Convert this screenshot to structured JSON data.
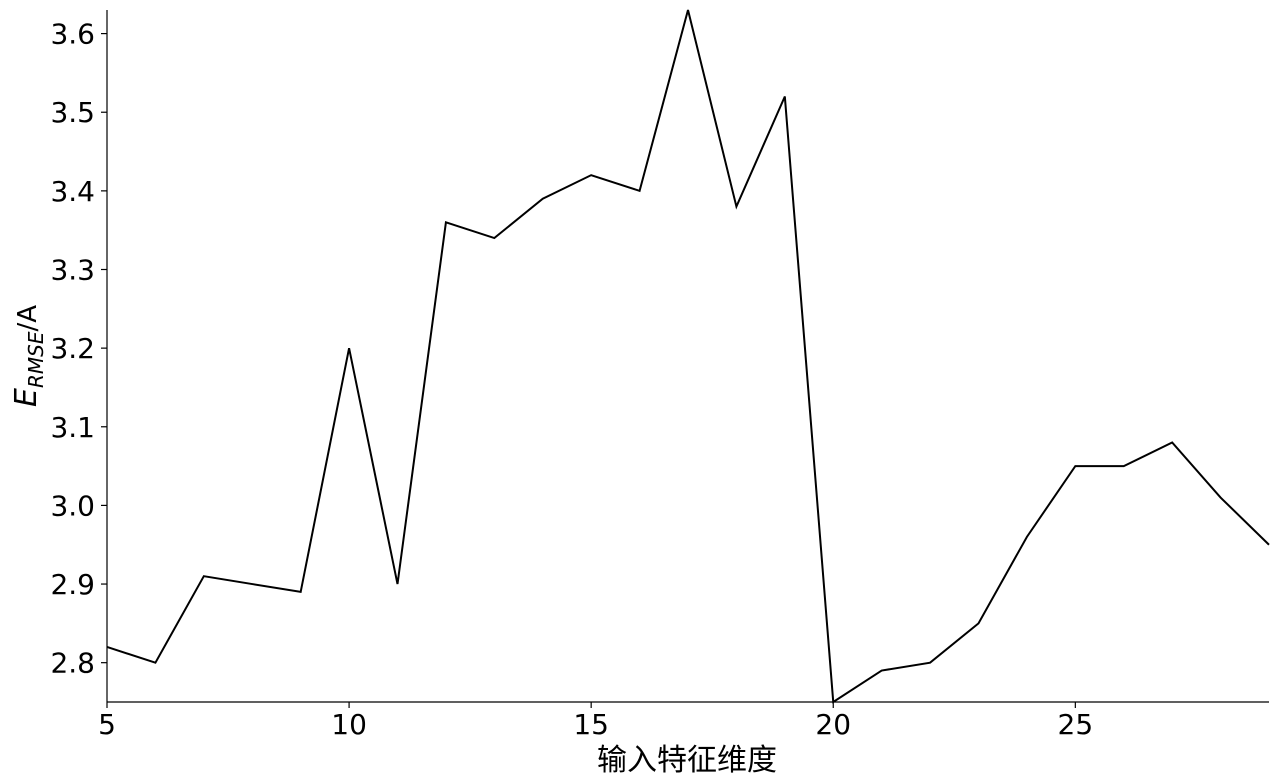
{
  "chart_data": {
    "type": "line",
    "title": "",
    "xlabel": "输入特征维度",
    "ylabel": {
      "main": "E",
      "subscript": "RMSE",
      "suffix": "/A"
    },
    "xlim": [
      5,
      29
    ],
    "ylim": [
      2.75,
      3.63
    ],
    "x_ticks": [
      5,
      10,
      15,
      20,
      25
    ],
    "x_tick_labels": [
      "5",
      "10",
      "15",
      "20",
      "25"
    ],
    "y_ticks": [
      2.8,
      2.9,
      3.0,
      3.1,
      3.2,
      3.3,
      3.4,
      3.5,
      3.6
    ],
    "y_tick_labels": [
      "2.8",
      "2.9",
      "3.0",
      "3.1",
      "3.2",
      "3.3",
      "3.4",
      "3.5",
      "3.6"
    ],
    "grid": false,
    "legend": "none",
    "series": [
      {
        "color": "#000000",
        "x": [
          5,
          6,
          7,
          8,
          9,
          10,
          11,
          12,
          13,
          14,
          15,
          16,
          17,
          18,
          19,
          20,
          21,
          22,
          23,
          24,
          25,
          26,
          27,
          28,
          29
        ],
        "y": [
          2.82,
          2.8,
          2.91,
          2.9,
          2.89,
          3.2,
          2.9,
          3.36,
          3.34,
          3.39,
          3.42,
          3.4,
          3.63,
          3.38,
          3.52,
          2.75,
          2.79,
          2.8,
          2.85,
          2.96,
          3.05,
          3.05,
          3.08,
          3.01,
          2.95
        ]
      }
    ]
  }
}
